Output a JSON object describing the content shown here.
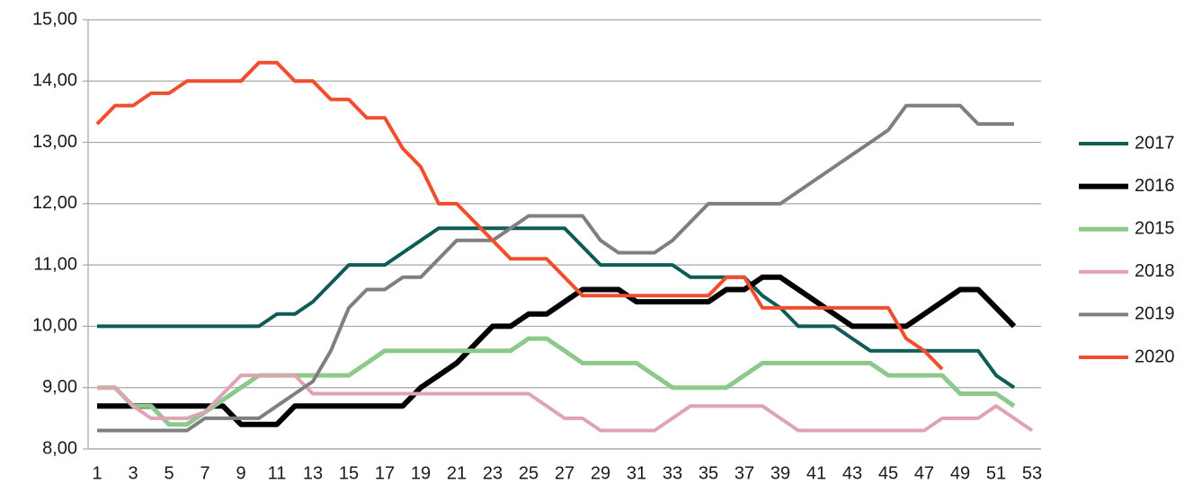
{
  "chart_data": {
    "type": "line",
    "categories": [
      "1",
      null,
      "3",
      null,
      "5",
      null,
      "7",
      null,
      "9",
      null,
      "11",
      null,
      "13",
      null,
      "15",
      null,
      "17",
      null,
      "19",
      null,
      "21",
      null,
      "23",
      null,
      "25",
      null,
      "27",
      null,
      "29",
      null,
      "31",
      null,
      "33",
      null,
      "35",
      null,
      "37",
      null,
      "39",
      null,
      "41",
      null,
      "43",
      null,
      "45",
      null,
      "47",
      null,
      "49",
      null,
      "51",
      null,
      "53"
    ],
    "ylim": [
      8,
      15
    ],
    "yticks": [
      {
        "value": 8,
        "label": "8,00"
      },
      {
        "value": 9,
        "label": "9,00"
      },
      {
        "value": 10,
        "label": "10,00"
      },
      {
        "value": 11,
        "label": "11,00"
      },
      {
        "value": 12,
        "label": "12,00"
      },
      {
        "value": 13,
        "label": "13,00"
      },
      {
        "value": 14,
        "label": "14,00"
      },
      {
        "value": 15,
        "label": "15,00"
      }
    ],
    "grid": true,
    "legend": "right",
    "series": [
      {
        "name": "2017",
        "color": "#0d5c56",
        "width": 4,
        "values": [
          10,
          10,
          10,
          10,
          10,
          10,
          10,
          10,
          10,
          10,
          10.2,
          10.2,
          10.4,
          10.7,
          11,
          11,
          11,
          11.2,
          11.4,
          11.6,
          11.6,
          11.6,
          11.6,
          11.6,
          11.6,
          11.6,
          11.6,
          11.3,
          11,
          11,
          11,
          11,
          11,
          10.8,
          10.8,
          10.8,
          10.8,
          10.5,
          10.3,
          10,
          10,
          10,
          9.8,
          9.6,
          9.6,
          9.6,
          9.6,
          9.6,
          9.6,
          9.6,
          9.2,
          9,
          null
        ]
      },
      {
        "name": "2016",
        "color": "#000000",
        "width": 6,
        "values": [
          8.7,
          8.7,
          8.7,
          8.7,
          8.7,
          8.7,
          8.7,
          8.7,
          8.4,
          8.4,
          8.4,
          8.7,
          8.7,
          8.7,
          8.7,
          8.7,
          8.7,
          8.7,
          9,
          9.2,
          9.4,
          9.7,
          10,
          10,
          10.2,
          10.2,
          10.4,
          10.6,
          10.6,
          10.6,
          10.4,
          10.4,
          10.4,
          10.4,
          10.4,
          10.6,
          10.6,
          10.8,
          10.8,
          10.6,
          10.4,
          10.2,
          10,
          10,
          10,
          10,
          10.2,
          10.4,
          10.6,
          10.6,
          10.3,
          10,
          null
        ]
      },
      {
        "name": "2015",
        "color": "#8cc98a",
        "width": 5,
        "values": [
          9,
          9,
          8.7,
          8.7,
          8.4,
          8.4,
          8.6,
          8.8,
          9,
          9.2,
          9.2,
          9.2,
          9.2,
          9.2,
          9.2,
          9.4,
          9.6,
          9.6,
          9.6,
          9.6,
          9.6,
          9.6,
          9.6,
          9.6,
          9.8,
          9.8,
          9.6,
          9.4,
          9.4,
          9.4,
          9.4,
          9.2,
          9,
          9,
          9,
          9,
          9.2,
          9.4,
          9.4,
          9.4,
          9.4,
          9.4,
          9.4,
          9.4,
          9.2,
          9.2,
          9.2,
          9.2,
          8.9,
          8.9,
          8.9,
          8.7,
          null
        ]
      },
      {
        "name": "2018",
        "color": "#e0a3b4",
        "width": 4,
        "values": [
          9,
          9,
          8.7,
          8.5,
          8.5,
          8.5,
          8.6,
          8.9,
          9.2,
          9.2,
          9.2,
          9.2,
          8.9,
          8.9,
          8.9,
          8.9,
          8.9,
          8.9,
          8.9,
          8.9,
          8.9,
          8.9,
          8.9,
          8.9,
          8.9,
          8.7,
          8.5,
          8.5,
          8.3,
          8.3,
          8.3,
          8.3,
          8.5,
          8.7,
          8.7,
          8.7,
          8.7,
          8.7,
          8.5,
          8.3,
          8.3,
          8.3,
          8.3,
          8.3,
          8.3,
          8.3,
          8.3,
          8.5,
          8.5,
          8.5,
          8.7,
          8.5,
          8.3
        ]
      },
      {
        "name": "2019",
        "color": "#7f7f7f",
        "width": 4,
        "values": [
          8.3,
          8.3,
          8.3,
          8.3,
          8.3,
          8.3,
          8.5,
          8.5,
          8.5,
          8.5,
          8.7,
          8.9,
          9.1,
          9.6,
          10.3,
          10.6,
          10.6,
          10.8,
          10.8,
          11.1,
          11.4,
          11.4,
          11.4,
          11.6,
          11.8,
          11.8,
          11.8,
          11.8,
          11.4,
          11.2,
          11.2,
          11.2,
          11.4,
          11.7,
          12,
          12,
          12,
          12,
          12,
          12.2,
          12.4,
          12.6,
          12.8,
          13,
          13.2,
          13.6,
          13.6,
          13.6,
          13.6,
          13.3,
          13.3,
          13.3,
          null
        ]
      },
      {
        "name": "2020",
        "color": "#f04e2e",
        "width": 4,
        "values": [
          13.3,
          13.6,
          13.6,
          13.8,
          13.8,
          14,
          14,
          14,
          14,
          14.3,
          14.3,
          14,
          14,
          13.7,
          13.7,
          13.4,
          13.4,
          12.9,
          12.6,
          12,
          12,
          11.7,
          11.4,
          11.1,
          11.1,
          11.1,
          10.8,
          10.5,
          10.5,
          10.5,
          10.5,
          10.5,
          10.5,
          10.5,
          10.5,
          10.8,
          10.8,
          10.3,
          10.3,
          10.3,
          10.3,
          10.3,
          10.3,
          10.3,
          10.3,
          9.8,
          9.6,
          9.3,
          null,
          null,
          null,
          null,
          null
        ]
      }
    ]
  }
}
